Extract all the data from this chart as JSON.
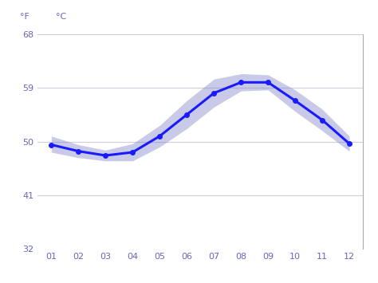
{
  "months": [
    1,
    2,
    3,
    4,
    5,
    6,
    7,
    8,
    9,
    10,
    11,
    12
  ],
  "month_labels": [
    "01",
    "02",
    "03",
    "04",
    "05",
    "06",
    "07",
    "08",
    "09",
    "10",
    "11",
    "12"
  ],
  "temp_mean": [
    9.7,
    9.1,
    8.7,
    9.0,
    10.5,
    12.5,
    14.5,
    15.5,
    15.5,
    13.8,
    12.0,
    9.8
  ],
  "temp_high": [
    10.5,
    9.7,
    9.2,
    9.8,
    11.5,
    13.8,
    15.8,
    16.3,
    16.2,
    14.8,
    13.0,
    10.5
  ],
  "temp_low": [
    9.0,
    8.5,
    8.2,
    8.2,
    9.5,
    11.2,
    13.2,
    14.7,
    14.8,
    12.8,
    11.0,
    9.1
  ],
  "line_color": "#1a1aff",
  "fill_color": "#8888cc",
  "fill_alpha": 0.45,
  "bg_color": "#ffffff",
  "grid_color": "#ccccdd",
  "label_color": "#6666bb",
  "yticks_c": [
    0,
    5,
    10,
    15,
    20
  ],
  "yticks_f": [
    32,
    41,
    50,
    59,
    68
  ],
  "ylim_c": [
    0,
    20
  ],
  "ylabel_left": "°F",
  "ylabel_right": "°C",
  "marker_size": 4.0,
  "line_width": 2.2
}
